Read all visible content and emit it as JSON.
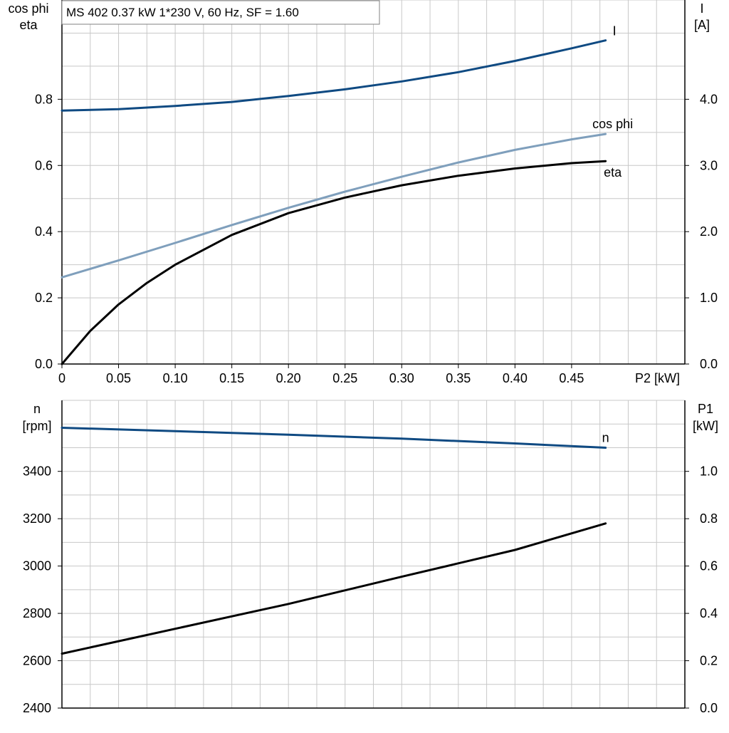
{
  "colors": {
    "current": "#0f4a82",
    "cos_phi": "#7f9fbc",
    "eta": "#000000",
    "speed": "#0f4a82",
    "p1": "#000000",
    "grid": "#c8c8c8"
  },
  "chart_data": [
    {
      "type": "line",
      "title": "MS 402   0.37 kW   1*230 V, 60 Hz, SF = 1.60",
      "xlabel": "P2 [kW]",
      "ylabel_left": [
        "cos phi",
        "eta"
      ],
      "ylabel_right": [
        "I",
        "[A]"
      ],
      "xlim": [
        0,
        0.55
      ],
      "ylim_left": [
        0,
        1.1
      ],
      "ylim_right": [
        0,
        5.5
      ],
      "x_ticks": [
        0,
        0.05,
        0.1,
        0.15,
        0.2,
        0.25,
        0.3,
        0.35,
        0.4,
        0.45
      ],
      "x_tick_labels": [
        "0",
        "0.05",
        "0.10",
        "0.15",
        "0.20",
        "0.25",
        "0.30",
        "0.35",
        "0.40",
        "0.45"
      ],
      "y_left_ticks": [
        0,
        0.2,
        0.4,
        0.6,
        0.8
      ],
      "y_left_tick_labels": [
        "0.0",
        "0.2",
        "0.4",
        "0.6",
        "0.8"
      ],
      "y_right_ticks": [
        0,
        1,
        2,
        3,
        4
      ],
      "y_right_tick_labels": [
        "0.0",
        "1.0",
        "2.0",
        "3.0",
        "4.0"
      ],
      "grid": true,
      "series": [
        {
          "name": "I",
          "axis": "right",
          "x": [
            0,
            0.05,
            0.1,
            0.15,
            0.2,
            0.25,
            0.3,
            0.35,
            0.4,
            0.45,
            0.48
          ],
          "y": [
            3.83,
            3.85,
            3.9,
            3.96,
            4.05,
            4.15,
            4.27,
            4.41,
            4.58,
            4.77,
            4.89
          ]
        },
        {
          "name": "cos phi",
          "axis": "left",
          "x": [
            0,
            0.05,
            0.1,
            0.15,
            0.2,
            0.25,
            0.3,
            0.35,
            0.4,
            0.45,
            0.48
          ],
          "y": [
            0.262,
            0.313,
            0.366,
            0.42,
            0.472,
            0.521,
            0.566,
            0.609,
            0.647,
            0.679,
            0.695
          ]
        },
        {
          "name": "eta",
          "axis": "left",
          "x": [
            0,
            0.025,
            0.05,
            0.075,
            0.1,
            0.15,
            0.2,
            0.25,
            0.3,
            0.35,
            0.4,
            0.45,
            0.48
          ],
          "y": [
            0.0,
            0.1,
            0.18,
            0.245,
            0.3,
            0.39,
            0.456,
            0.503,
            0.54,
            0.569,
            0.591,
            0.607,
            0.613
          ]
        }
      ]
    },
    {
      "type": "line",
      "xlim": [
        0,
        0.55
      ],
      "ylabel_left": [
        "n",
        "[rpm]"
      ],
      "ylabel_right": [
        "P1",
        "[kW]"
      ],
      "ylim_left": [
        2400,
        3700
      ],
      "ylim_right": [
        0,
        1.3
      ],
      "y_left_ticks": [
        2400,
        2600,
        2800,
        3000,
        3200,
        3400
      ],
      "y_left_tick_labels": [
        "2400",
        "2600",
        "2800",
        "3000",
        "3200",
        "3400"
      ],
      "y_right_ticks": [
        0,
        0.2,
        0.4,
        0.6,
        0.8,
        1.0
      ],
      "y_right_tick_labels": [
        "0.0",
        "0.2",
        "0.4",
        "0.6",
        "0.8",
        "1.0"
      ],
      "grid": true,
      "series": [
        {
          "name": "n",
          "axis": "left",
          "x": [
            0,
            0.1,
            0.2,
            0.3,
            0.4,
            0.48
          ],
          "y": [
            3584,
            3570,
            3555,
            3538,
            3518,
            3500
          ]
        },
        {
          "axis": "right",
          "x": [
            0,
            0.1,
            0.2,
            0.3,
            0.4,
            0.48
          ],
          "y": [
            0.23,
            0.335,
            0.44,
            0.555,
            0.668,
            0.78
          ]
        }
      ]
    }
  ]
}
